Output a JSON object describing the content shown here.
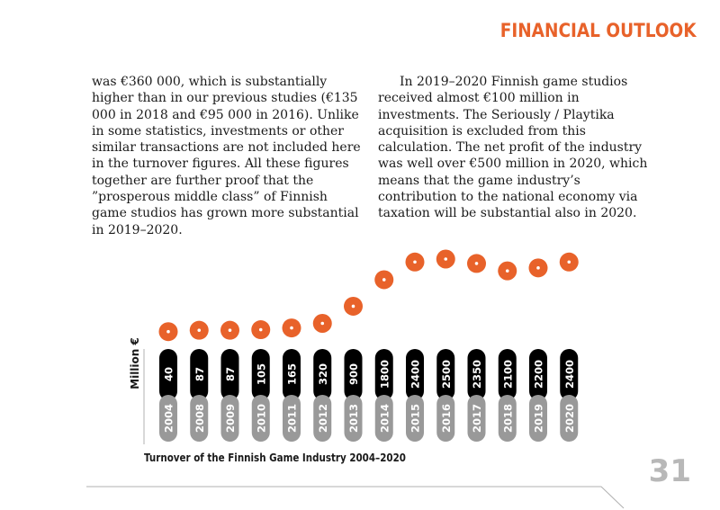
{
  "header": {
    "section_title": "FINANCIAL OUTLOOK"
  },
  "body": {
    "left_paragraph": "was €360 000, which is substantially higher than in our previous studies (€135 000 in 2018 and €95 000 in 2016). Unlike in some statistics, investments or other similar transactions are not included here in the turnover figures. All these figures together are further proof that the ”prosperous middle class” of Finnish game studios has grown more substantial in 2019–2020.",
    "right_paragraph": "In 2019–2020 Finnish game studios received almost €100 million in investments. The Seriously / Playtika acquisition is excluded from this calculation. The net profit of the industry was well over €500 million in 2020, which means that the game industry’s contribution to the national economy via taxation will be substantial also in 2020."
  },
  "chart_data": {
    "type": "line",
    "title": "Turnover of the Finnish Game Industry 2004–2020",
    "ylabel": "Million €",
    "xlabel": "",
    "categories": [
      "2004",
      "2008",
      "2009",
      "2010",
      "2011",
      "2012",
      "2013",
      "2014",
      "2015",
      "2016",
      "2017",
      "2018",
      "2019",
      "2020"
    ],
    "values": [
      40,
      87,
      87,
      105,
      165,
      320,
      900,
      1800,
      2400,
      2500,
      2350,
      2100,
      2200,
      2400
    ],
    "ylim": [
      0,
      2500
    ],
    "colors": {
      "marker": "#e8622a",
      "value_pill": "#000000",
      "year_pill": "#999999",
      "pill_text": "#ffffff"
    }
  },
  "footer": {
    "page_number": "31"
  }
}
